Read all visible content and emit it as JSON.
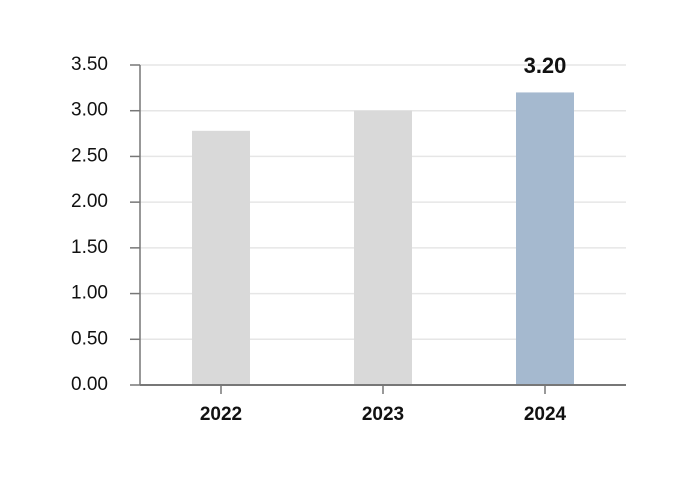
{
  "chart_data": {
    "type": "bar",
    "categories": [
      "2022",
      "2023",
      "2024"
    ],
    "values": [
      2.78,
      3.0,
      3.2
    ],
    "value_labels": [
      null,
      null,
      "3.20"
    ],
    "colors": [
      "#d9d9d9",
      "#d9d9d9",
      "#a5b9cf"
    ],
    "ylim": [
      0,
      3.5
    ],
    "yticks": [
      {
        "value": 0,
        "label": "0.00"
      },
      {
        "value": 0.5,
        "label": "0.50"
      },
      {
        "value": 1,
        "label": "1.00"
      },
      {
        "value": 1.5,
        "label": "1.50"
      },
      {
        "value": 2,
        "label": "2.00"
      },
      {
        "value": 2.5,
        "label": "2.50"
      },
      {
        "value": 3,
        "label": "3.00"
      },
      {
        "value": 3.5,
        "label": "3.50"
      }
    ],
    "grid": true
  }
}
